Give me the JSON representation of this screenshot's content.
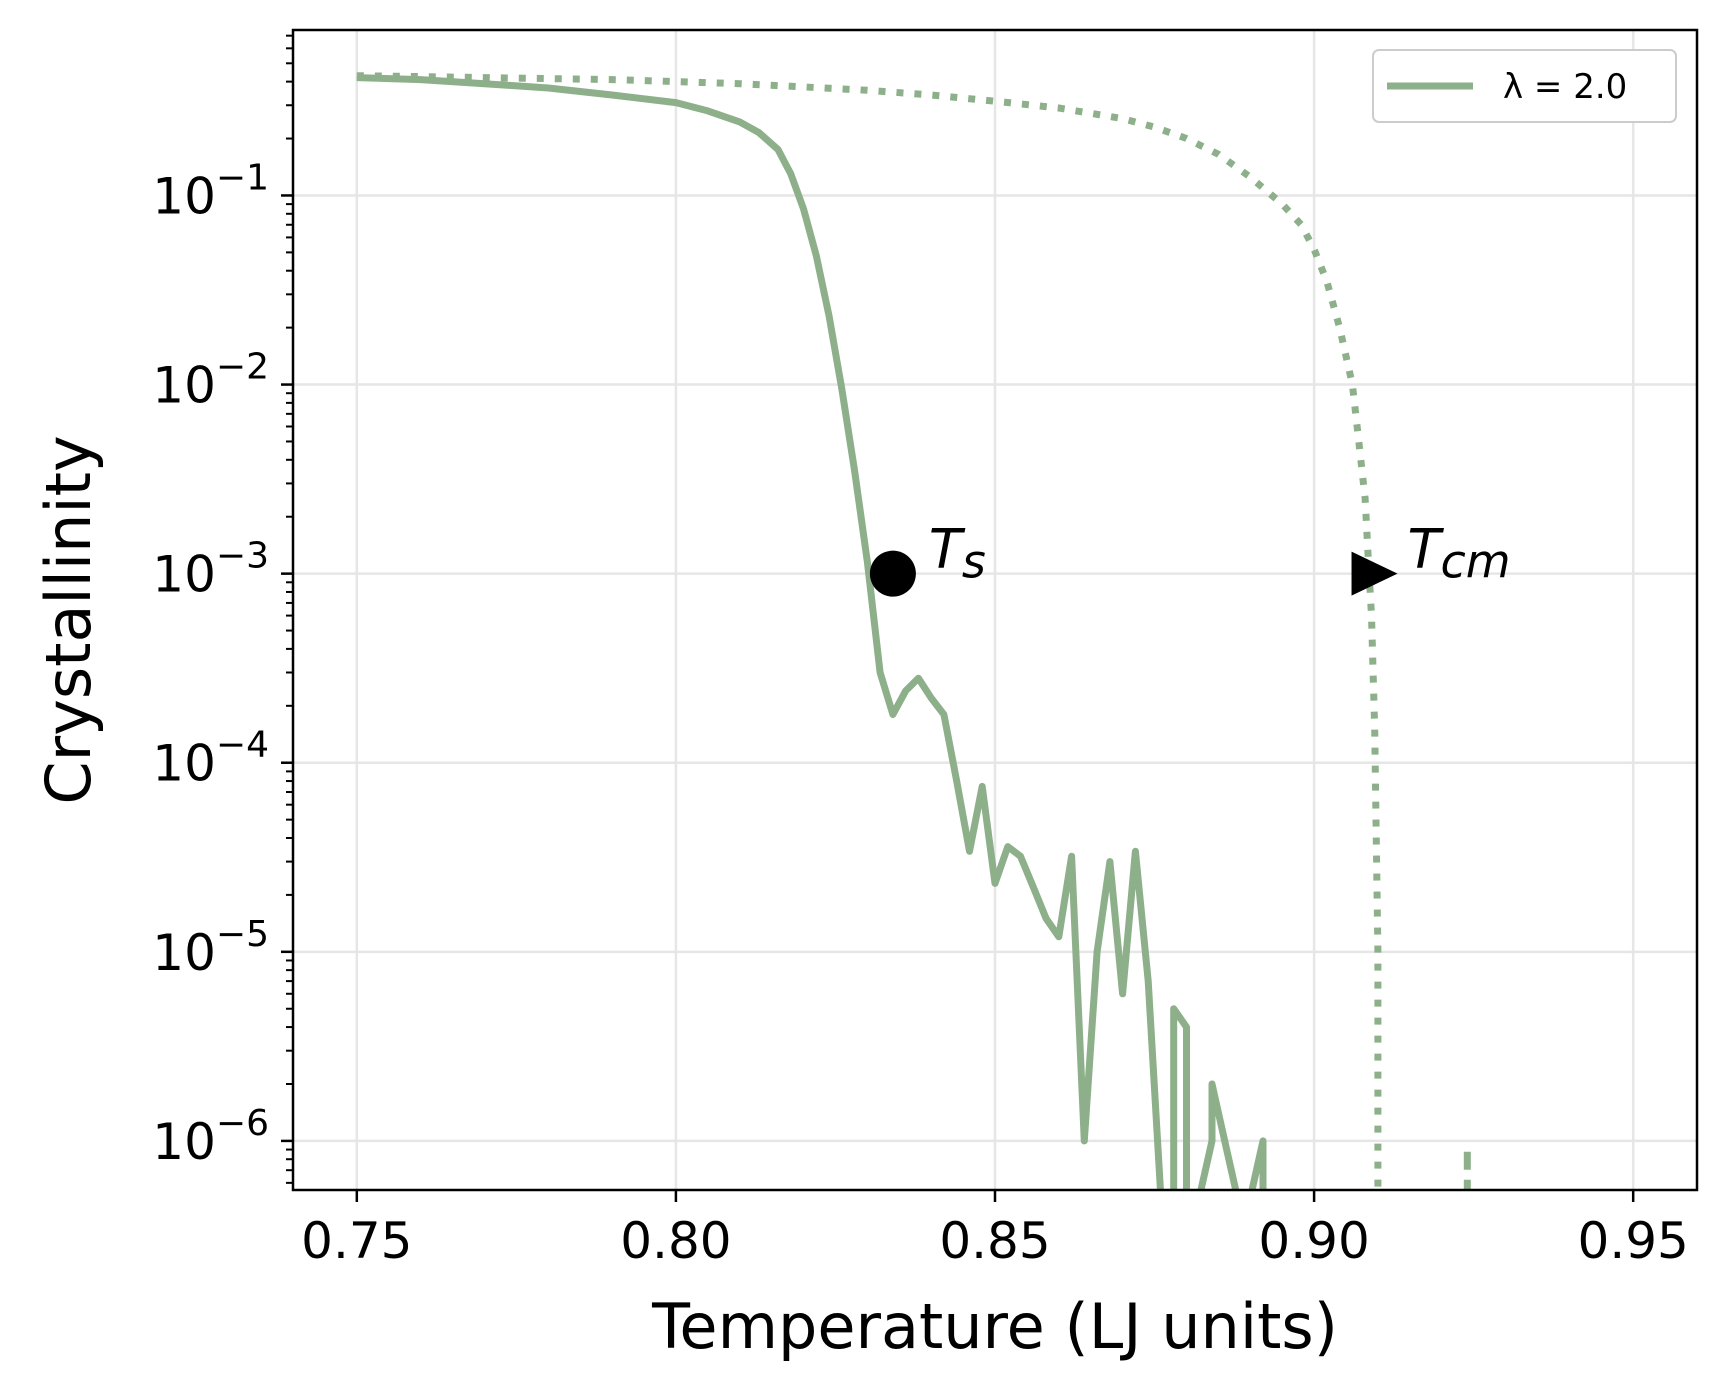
{
  "chart_data": {
    "type": "line",
    "title": "",
    "xlabel": "Temperature (LJ units)",
    "ylabel": "Crystallinity",
    "xlim": [
      0.74,
      0.96
    ],
    "ylim": [
      5.5e-07,
      0.75
    ],
    "yscale": "log",
    "grid": true,
    "legend_position": "top-right",
    "x_ticks": [
      {
        "value": 0.75,
        "label": "0.75"
      },
      {
        "value": 0.8,
        "label": "0.80"
      },
      {
        "value": 0.85,
        "label": "0.85"
      },
      {
        "value": 0.9,
        "label": "0.90"
      },
      {
        "value": 0.95,
        "label": "0.95"
      }
    ],
    "y_ticks": [
      {
        "exp": -1,
        "base": "10",
        "sup": "−1"
      },
      {
        "exp": -2,
        "base": "10",
        "sup": "−2"
      },
      {
        "exp": -3,
        "base": "10",
        "sup": "−3"
      },
      {
        "exp": -4,
        "base": "10",
        "sup": "−4"
      },
      {
        "exp": -5,
        "base": "10",
        "sup": "−5"
      },
      {
        "exp": -6,
        "base": "10",
        "sup": "−6"
      }
    ],
    "series": [
      {
        "name": "λ = 2.0",
        "style": "solid",
        "color": "#8db08a",
        "x": [
          0.75,
          0.76,
          0.77,
          0.78,
          0.79,
          0.8,
          0.805,
          0.81,
          0.813,
          0.816,
          0.818,
          0.82,
          0.822,
          0.824,
          0.826,
          0.828,
          0.83,
          0.832,
          0.834,
          0.836,
          0.838,
          0.84,
          0.842,
          0.844,
          0.846,
          0.848,
          0.85,
          0.852,
          0.854,
          0.856,
          0.858,
          0.86,
          0.862,
          0.864,
          0.866,
          0.868,
          0.87,
          0.872,
          0.874,
          0.876,
          0.878,
          0.878,
          0.88,
          0.88,
          0.882,
          0.884,
          0.884,
          0.886,
          0.888,
          0.89,
          0.892,
          0.892,
          0.894,
          0.896,
          0.896
        ],
        "y": [
          0.42,
          0.41,
          0.39,
          0.37,
          0.34,
          0.31,
          0.28,
          0.245,
          0.215,
          0.175,
          0.13,
          0.085,
          0.048,
          0.023,
          0.0095,
          0.0035,
          0.00115,
          0.0003,
          0.00018,
          0.00024,
          0.00028,
          0.00022,
          0.00018,
          8e-05,
          3.4e-05,
          7.5e-05,
          2.3e-05,
          3.6e-05,
          3.2e-05,
          2.2e-05,
          1.5e-05,
          1.2e-05,
          3.2e-05,
          1e-06,
          1e-05,
          3e-05,
          6e-06,
          3.4e-05,
          7e-06,
          5e-07,
          5e-07,
          5e-06,
          4e-06,
          5e-07,
          5e-07,
          1e-06,
          2e-06,
          1e-06,
          5e-07,
          5e-07,
          1e-06,
          5e-07,
          5e-07,
          5e-07,
          5e-07
        ]
      },
      {
        "name": "",
        "style": "dotted",
        "color": "#8db08a",
        "x": [
          0.75,
          0.76,
          0.77,
          0.78,
          0.79,
          0.8,
          0.81,
          0.82,
          0.83,
          0.84,
          0.85,
          0.86,
          0.87,
          0.875,
          0.88,
          0.885,
          0.89,
          0.895,
          0.898,
          0.9,
          0.902,
          0.904,
          0.906,
          0.907,
          0.908,
          0.9085,
          0.909,
          0.9095,
          0.91,
          0.91
        ],
        "y": [
          0.43,
          0.425,
          0.42,
          0.415,
          0.41,
          0.4,
          0.39,
          0.375,
          0.36,
          0.34,
          0.315,
          0.29,
          0.255,
          0.23,
          0.2,
          0.165,
          0.125,
          0.09,
          0.07,
          0.052,
          0.035,
          0.02,
          0.01,
          0.005,
          0.0025,
          0.0012,
          0.0006,
          0.00015,
          1e-05,
          5e-07
        ]
      },
      {
        "name": "",
        "style": "dashed",
        "color": "#8db08a",
        "x": [
          0.924,
          0.924
        ],
        "y": [
          5e-07,
          9.5e-07
        ]
      }
    ],
    "markers": [
      {
        "name": "ts-marker",
        "shape": "circle",
        "x": 0.834,
        "y": 0.001,
        "label": "T",
        "sub": "s"
      },
      {
        "name": "tcm-marker",
        "shape": "triangle-right",
        "x": 0.909,
        "y": 0.001,
        "label": "T",
        "sub": "cm"
      }
    ]
  }
}
